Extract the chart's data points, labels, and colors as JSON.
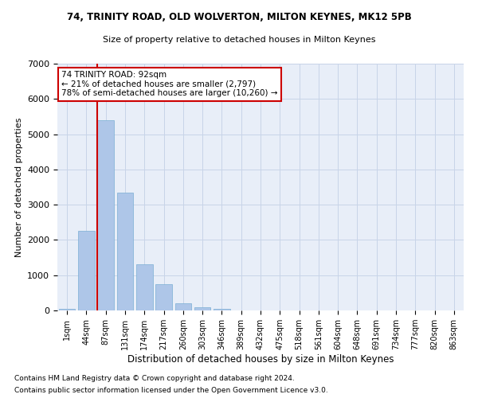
{
  "title1": "74, TRINITY ROAD, OLD WOLVERTON, MILTON KEYNES, MK12 5PB",
  "title2": "Size of property relative to detached houses in Milton Keynes",
  "xlabel": "Distribution of detached houses by size in Milton Keynes",
  "ylabel": "Number of detached properties",
  "footnote1": "Contains HM Land Registry data © Crown copyright and database right 2024.",
  "footnote2": "Contains public sector information licensed under the Open Government Licence v3.0.",
  "categories": [
    "1sqm",
    "44sqm",
    "87sqm",
    "131sqm",
    "174sqm",
    "217sqm",
    "260sqm",
    "303sqm",
    "346sqm",
    "389sqm",
    "432sqm",
    "475sqm",
    "518sqm",
    "561sqm",
    "604sqm",
    "648sqm",
    "691sqm",
    "734sqm",
    "777sqm",
    "820sqm",
    "863sqm"
  ],
  "values": [
    50,
    2250,
    5400,
    3350,
    1300,
    750,
    200,
    100,
    50,
    10,
    5,
    2,
    1,
    1,
    0,
    0,
    0,
    0,
    0,
    0,
    0
  ],
  "bar_color": "#aec6e8",
  "bar_edge_color": "#7aafd4",
  "grid_color": "#c8d4e8",
  "background_color": "#e8eef8",
  "annotation_box_color": "#ffffff",
  "annotation_box_edge": "#cc0000",
  "vline_color": "#cc0000",
  "annotation_title": "74 TRINITY ROAD: 92sqm",
  "annotation_line1": "← 21% of detached houses are smaller (2,797)",
  "annotation_line2": "78% of semi-detached houses are larger (10,260) →",
  "ylim": [
    0,
    7000
  ],
  "yticks": [
    0,
    1000,
    2000,
    3000,
    4000,
    5000,
    6000,
    7000
  ]
}
